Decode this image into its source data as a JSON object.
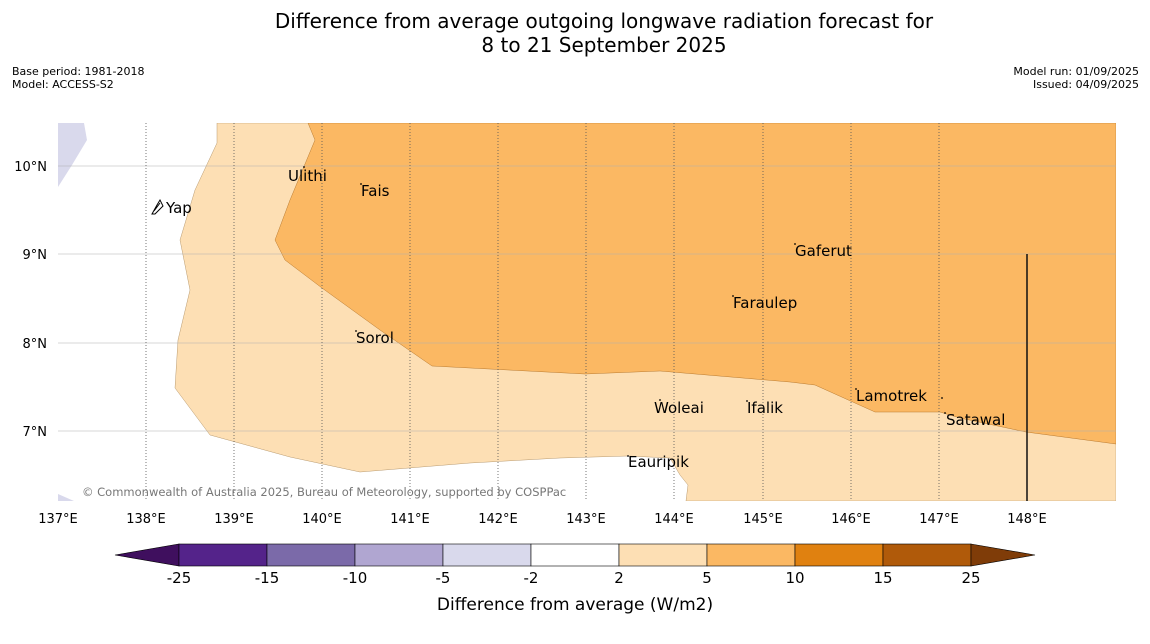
{
  "title": {
    "line1": "Difference from average outgoing longwave radiation forecast for",
    "line2": "8 to 21 September 2025"
  },
  "meta_left": {
    "base_period": "Base period: 1981-2018",
    "model": "Model: ACCESS-S2"
  },
  "meta_right": {
    "model_run": "Model run: 01/09/2025",
    "issued": "Issued: 04/09/2025"
  },
  "map": {
    "lon_labels": [
      "137°E",
      "138°E",
      "139°E",
      "140°E",
      "141°E",
      "142°E",
      "143°E",
      "144°E",
      "145°E",
      "146°E",
      "147°E",
      "148°E"
    ],
    "lat_labels": [
      "10°N",
      "9°N",
      "8°N",
      "7°N"
    ],
    "places": [
      {
        "name": "Ulithi"
      },
      {
        "name": "Fais"
      },
      {
        "name": "Yap"
      },
      {
        "name": "Gaferut"
      },
      {
        "name": "Faraulep"
      },
      {
        "name": "Sorol"
      },
      {
        "name": "Lamotrek"
      },
      {
        "name": "Woleai"
      },
      {
        "name": "Ifalik"
      },
      {
        "name": "Satawal"
      },
      {
        "name": "Eauripik"
      }
    ],
    "copyright": "© Commonwealth of Australia 2025, Bureau of Meteorology, supported by COSPPac"
  },
  "colorbar": {
    "ticks": [
      "-25",
      "-15",
      "-10",
      "-5",
      "-2",
      "2",
      "5",
      "10",
      "15",
      "25"
    ],
    "colors": [
      "#3f0f5e",
      "#54238a",
      "#7b6aa9",
      "#b0a6d1",
      "#d9d9ec",
      "#ffffff",
      "#fddfb4",
      "#fbb863",
      "#e08110",
      "#b05a0a",
      "#7f3c08"
    ],
    "label": "Difference from average (W/m2)"
  }
}
